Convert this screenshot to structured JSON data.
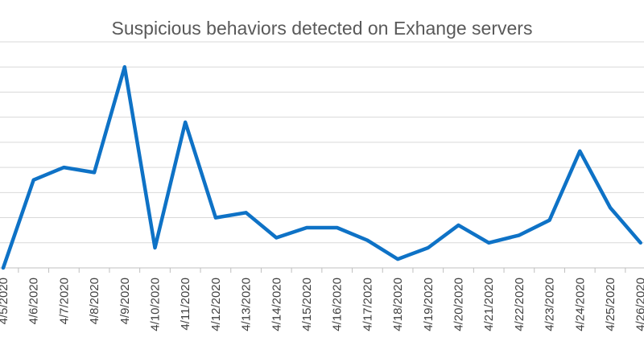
{
  "chart_data": {
    "type": "line",
    "title": "Suspicious behaviors detected on Exhange servers",
    "xlabel": "",
    "ylabel": "",
    "categories": [
      "4/5/2020",
      "4/6/2020",
      "4/7/2020",
      "4/8/2020",
      "4/9/2020",
      "4/10/2020",
      "4/11/2020",
      "4/12/2020",
      "4/13/2020",
      "4/14/2020",
      "4/15/2020",
      "4/16/2020",
      "4/17/2020",
      "4/18/2020",
      "4/19/2020",
      "4/20/2020",
      "4/21/2020",
      "4/22/2020",
      "4/23/2020",
      "4/24/2020",
      "4/25/2020",
      "4/26/2020"
    ],
    "series": [
      {
        "values": [
          0,
          3.5,
          4.0,
          3.8,
          8.0,
          0.8,
          5.8,
          2.0,
          2.2,
          1.2,
          1.6,
          1.6,
          1.1,
          0.35,
          0.8,
          1.7,
          1.0,
          1.3,
          1.9,
          4.65,
          2.4,
          1.0
        ],
        "color": "#0e72c6"
      }
    ],
    "ylim": [
      0,
      9
    ],
    "grid": true,
    "legend": "none"
  }
}
